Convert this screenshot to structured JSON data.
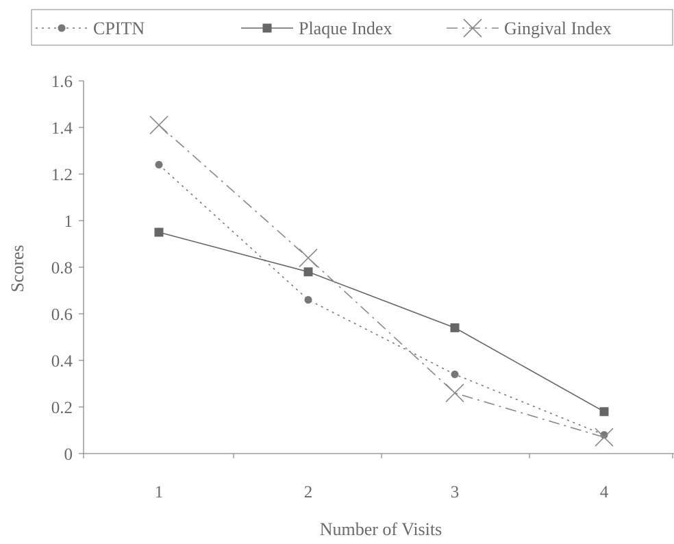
{
  "chart_data": {
    "type": "line",
    "title": "",
    "xlabel": "Number of Visits",
    "ylabel": "Scores",
    "x": [
      1,
      2,
      3,
      4
    ],
    "x_tick_labels": [
      "1",
      "2",
      "3",
      "4"
    ],
    "ylim": [
      0,
      1.6
    ],
    "y_ticks": [
      0,
      0.2,
      0.4,
      0.6,
      0.8,
      1,
      1.2,
      1.4,
      1.6
    ],
    "y_tick_labels": [
      "0",
      "0.2",
      "0.4",
      "0.6",
      "0.8",
      "1",
      "1.2",
      "1.4",
      "1.6"
    ],
    "grid": false,
    "legend_position": "top",
    "series": [
      {
        "name": "CPITN",
        "values": [
          1.24,
          0.66,
          0.34,
          0.08
        ],
        "marker": "circle",
        "line_style": "dotted",
        "color": "#777777"
      },
      {
        "name": "Plaque Index",
        "values": [
          0.95,
          0.78,
          0.54,
          0.18
        ],
        "marker": "square",
        "line_style": "solid",
        "color": "#666666"
      },
      {
        "name": "Gingival Index",
        "values": [
          1.41,
          0.84,
          0.26,
          0.07
        ],
        "marker": "x",
        "line_style": "dashed",
        "color": "#888888"
      }
    ]
  }
}
